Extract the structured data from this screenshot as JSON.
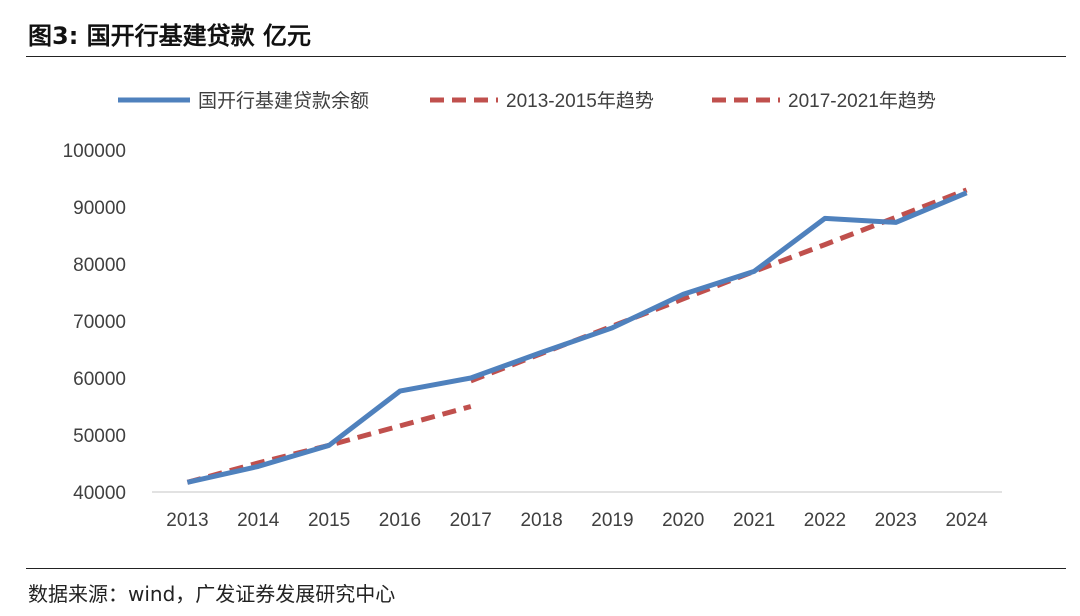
{
  "header": {
    "title": "图3:  国开行基建贷款  亿元"
  },
  "footer": {
    "source": "数据来源：wind，广发证券发展研究中心"
  },
  "colors": {
    "actual": "#4F81BD",
    "trend": "#C0504D",
    "axis": "#D9D9D9"
  },
  "chart_data": {
    "type": "line",
    "title": "",
    "xlabel": "",
    "ylabel": "",
    "ylim": [
      40000,
      100000
    ],
    "yticks": [
      40000,
      50000,
      60000,
      70000,
      80000,
      90000,
      100000
    ],
    "categories": [
      "2013",
      "2014",
      "2015",
      "2016",
      "2017",
      "2018",
      "2019",
      "2020",
      "2021",
      "2022",
      "2023",
      "2024"
    ],
    "legend_position": "top",
    "grid": false,
    "series": [
      {
        "name": "国开行基建贷款余额",
        "style": "solid",
        "x": [
          "2013",
          "2014",
          "2015",
          "2016",
          "2017",
          "2018",
          "2019",
          "2020",
          "2021",
          "2022",
          "2023",
          "2024"
        ],
        "values": [
          41700,
          44500,
          48200,
          57700,
          60000,
          64500,
          68800,
          74700,
          78700,
          88000,
          87300,
          92500
        ]
      },
      {
        "name": "2013-2015年趋势",
        "style": "dashed",
        "x": [
          "2013",
          "2014",
          "2015",
          "2016",
          "2017"
        ],
        "values": [
          41700,
          45100,
          48200,
          51600,
          55000
        ]
      },
      {
        "name": "2017-2021年趋势",
        "style": "dashed",
        "x": [
          "2017",
          "2018",
          "2019",
          "2020",
          "2021",
          "2022",
          "2023",
          "2024"
        ],
        "values": [
          59500,
          64300,
          69100,
          73900,
          78700,
          83400,
          88200,
          93000
        ]
      }
    ]
  }
}
